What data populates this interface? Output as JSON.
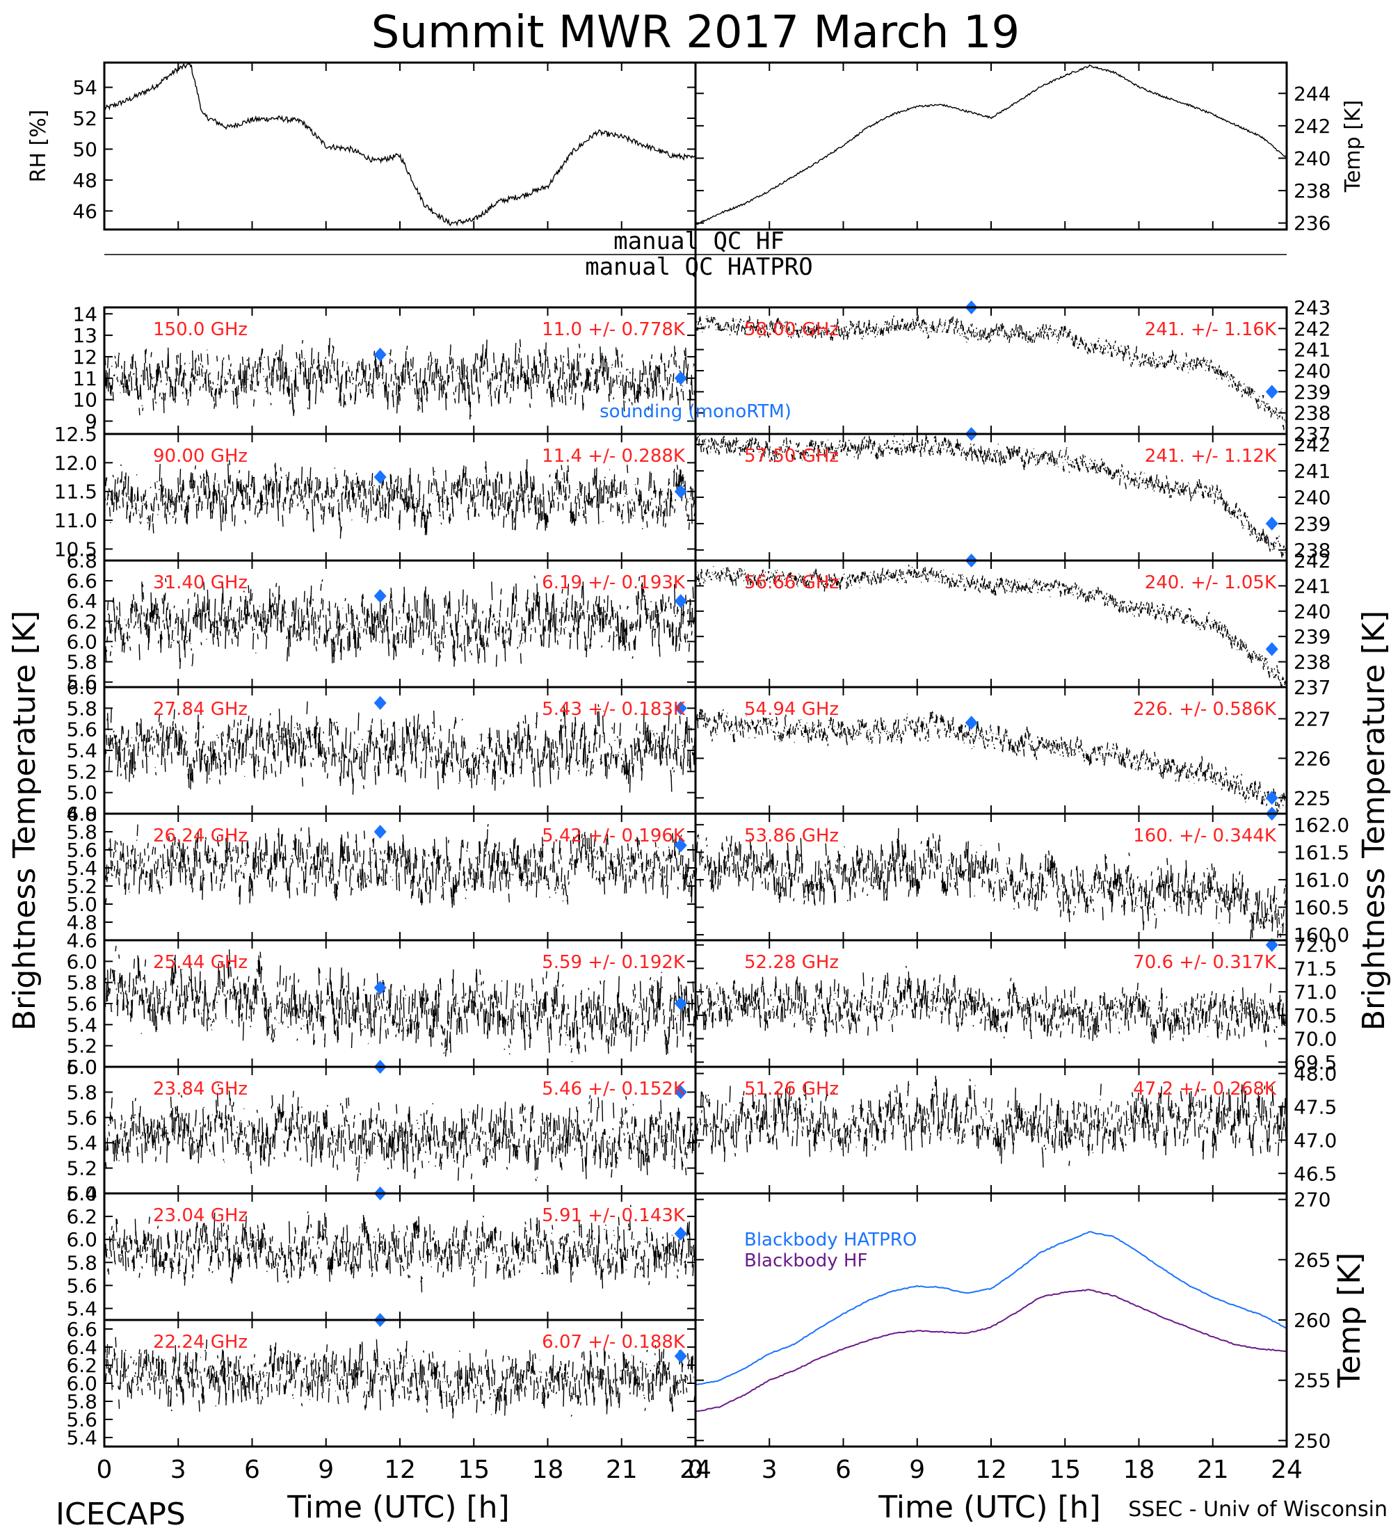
{
  "title": "Summit MWR 2017 March 19",
  "footer_left": "ICECAPS",
  "footer_right": "SSEC - Univ of Wisconsin",
  "xlabel": "Time (UTC) [h]",
  "x_ticks": [
    "0",
    "3",
    "6",
    "9",
    "12",
    "15",
    "18",
    "21",
    "24"
  ],
  "ylabel_brightness": "Brightness Temperature [K]",
  "qc_hf_label": "manual QC HF",
  "qc_hatpro_label": "manual QC HATPRO",
  "legend_sounding": "sounding (monoRTM)",
  "colors": {
    "data": "#000000",
    "label": "#ff2020",
    "sounding": "#1a73ff",
    "bb_hatpro": "#1a73ff",
    "bb_hf": "#6a1a8a"
  },
  "chart_data": [
    {
      "type": "line",
      "panel": "rh",
      "ylabel": "RH [%]",
      "ylim": [
        44.8,
        55.6
      ],
      "y_ticks": [
        "46",
        "48",
        "50",
        "52",
        "54"
      ],
      "series": [
        {
          "x": [
            0,
            1,
            2,
            3,
            3.5,
            4,
            5,
            6,
            7,
            8,
            9,
            10,
            11,
            12,
            13,
            14,
            15,
            16,
            17,
            18,
            19,
            20,
            21,
            22,
            23,
            24
          ],
          "values": [
            52.6,
            53.2,
            54.0,
            55.2,
            55.5,
            52.2,
            51.4,
            51.9,
            52.0,
            51.8,
            50.2,
            50.0,
            49.2,
            49.6,
            46.4,
            45.2,
            45.4,
            46.6,
            47.0,
            47.6,
            49.8,
            51.1,
            50.8,
            50.2,
            49.6,
            49.4
          ]
        }
      ]
    },
    {
      "type": "line",
      "panel": "temp",
      "ylabel": "Temp [K]",
      "ylim": [
        235.6,
        245.9
      ],
      "y_ticks": [
        "236",
        "238",
        "240",
        "242",
        "244"
      ],
      "series": [
        {
          "x": [
            0,
            1,
            2,
            3,
            4,
            5,
            6,
            7,
            8,
            9,
            10,
            11,
            12,
            13,
            14,
            15,
            16,
            17,
            18,
            19,
            20,
            21,
            22,
            23,
            24
          ],
          "values": [
            235.9,
            236.6,
            237.2,
            238.0,
            238.9,
            239.8,
            240.8,
            241.9,
            242.7,
            243.2,
            243.3,
            242.9,
            242.5,
            243.4,
            244.4,
            245.1,
            245.7,
            245.3,
            244.4,
            243.8,
            243.3,
            242.7,
            242.0,
            241.3,
            240.0
          ]
        }
      ]
    },
    {
      "type": "scatter",
      "panel": "150.0 GHz",
      "ylim": [
        8.4,
        14.3
      ],
      "y_ticks": [
        "9",
        "10",
        "11",
        "12",
        "13",
        "14"
      ],
      "label": "150.0 GHz",
      "stats": "11.0 +/- 0.778K",
      "mean_y": [
        11.0,
        11.0,
        11.0
      ],
      "noise": 0.778,
      "sounding": [
        {
          "x": 11.2,
          "y": 12.1
        },
        {
          "x": 23.4,
          "y": 11.0
        }
      ]
    },
    {
      "type": "scatter",
      "panel": "90.00 GHz",
      "ylim": [
        10.3,
        12.5
      ],
      "y_ticks": [
        "10.5",
        "11.0",
        "11.5",
        "12.0",
        "12.5"
      ],
      "label": "90.00 GHz",
      "stats": "11.4 +/- 0.288K",
      "mean_y": [
        11.4,
        11.4,
        11.4
      ],
      "noise": 0.288,
      "sounding": [
        {
          "x": 11.2,
          "y": 11.75
        },
        {
          "x": 23.4,
          "y": 11.5
        }
      ]
    },
    {
      "type": "scatter",
      "panel": "31.40 GHz",
      "ylim": [
        5.55,
        6.8
      ],
      "y_ticks": [
        "5.6",
        "5.8",
        "6.0",
        "6.2",
        "6.4",
        "6.6",
        "6.8"
      ],
      "label": "31.40 GHz",
      "stats": "6.19 +/- 0.193K",
      "mean_y": [
        6.2,
        6.15,
        6.2
      ],
      "noise": 0.193,
      "sounding": [
        {
          "x": 11.2,
          "y": 6.45
        },
        {
          "x": 23.4,
          "y": 6.4
        }
      ]
    },
    {
      "type": "scatter",
      "panel": "27.84 GHz",
      "ylim": [
        4.8,
        6.0
      ],
      "y_ticks": [
        "4.8",
        "5.0",
        "5.2",
        "5.4",
        "5.6",
        "5.8",
        "6.0"
      ],
      "label": "27.84 GHz",
      "stats": "5.43 +/- 0.183K",
      "mean_y": [
        5.45,
        5.4,
        5.45
      ],
      "noise": 0.183,
      "sounding": [
        {
          "x": 11.2,
          "y": 5.85
        },
        {
          "x": 23.4,
          "y": 5.8
        }
      ]
    },
    {
      "type": "scatter",
      "panel": "26.24 GHz",
      "ylim": [
        4.6,
        6.0
      ],
      "y_ticks": [
        "4.6",
        "4.8",
        "5.0",
        "5.2",
        "5.4",
        "5.6",
        "5.8",
        "6.0"
      ],
      "label": "26.24 GHz",
      "stats": "5.42 +/- 0.196K",
      "mean_y": [
        5.45,
        5.4,
        5.45
      ],
      "noise": 0.196,
      "sounding": [
        {
          "x": 11.2,
          "y": 5.8
        },
        {
          "x": 23.4,
          "y": 5.65
        }
      ]
    },
    {
      "type": "scatter",
      "panel": "25.44 GHz",
      "ylim": [
        5.0,
        6.2
      ],
      "y_ticks": [
        "5.0",
        "5.2",
        "5.4",
        "5.6",
        "5.8",
        "6.0"
      ],
      "label": "25.44 GHz",
      "stats": "5.59 +/- 0.192K",
      "mean_y": [
        5.75,
        5.5,
        5.55
      ],
      "noise": 0.192,
      "sounding": [
        {
          "x": 11.2,
          "y": 5.75
        },
        {
          "x": 23.4,
          "y": 5.6
        }
      ]
    },
    {
      "type": "scatter",
      "panel": "23.84 GHz",
      "ylim": [
        5.0,
        6.0
      ],
      "y_ticks": [
        "5.0",
        "5.2",
        "5.4",
        "5.6",
        "5.8",
        "6.0"
      ],
      "label": "23.84 GHz",
      "stats": "5.46 +/- 0.152K",
      "mean_y": [
        5.5,
        5.45,
        5.45
      ],
      "noise": 0.152,
      "sounding": [
        {
          "x": 11.2,
          "y": 6.0
        },
        {
          "x": 23.4,
          "y": 5.8
        }
      ]
    },
    {
      "type": "scatter",
      "panel": "23.04 GHz",
      "ylim": [
        5.3,
        6.4
      ],
      "y_ticks": [
        "5.4",
        "5.6",
        "5.8",
        "6.0",
        "6.2",
        "6.4"
      ],
      "label": "23.04 GHz",
      "stats": "5.91 +/- 0.143K",
      "mean_y": [
        5.95,
        5.9,
        5.9
      ],
      "noise": 0.143,
      "sounding": [
        {
          "x": 11.2,
          "y": 6.4
        },
        {
          "x": 23.4,
          "y": 6.05
        }
      ]
    },
    {
      "type": "scatter",
      "panel": "22.24 GHz",
      "ylim": [
        5.3,
        6.7
      ],
      "y_ticks": [
        "5.4",
        "5.6",
        "5.8",
        "6.0",
        "6.2",
        "6.4",
        "6.6"
      ],
      "label": "22.24 GHz",
      "stats": "6.07 +/- 0.188K",
      "mean_y": [
        6.1,
        6.05,
        6.05
      ],
      "noise": 0.188,
      "sounding": [
        {
          "x": 11.2,
          "y": 6.7
        },
        {
          "x": 23.4,
          "y": 6.3
        }
      ]
    },
    {
      "type": "scatter",
      "panel": "58.00 GHz",
      "ylim": [
        237,
        243
      ],
      "y_ticks": [
        "237",
        "238",
        "239",
        "240",
        "241",
        "242",
        "243"
      ],
      "label": "58.00 GHz",
      "stats": "241. +/- 1.16K",
      "mean_y": [
        242.2,
        242.0,
        241.9,
        242.2,
        241.8,
        241.7,
        240.6,
        240.2,
        237.5
      ],
      "noise": 0.25,
      "sounding": [
        {
          "x": 11.2,
          "y": 243.0
        },
        {
          "x": 23.4,
          "y": 239.0
        }
      ]
    },
    {
      "type": "scatter",
      "panel": "57.50 GHz",
      "ylim": [
        237.6,
        242.4
      ],
      "y_ticks": [
        "238",
        "239",
        "240",
        "241",
        "242"
      ],
      "label": "57.50 GHz",
      "stats": "241. +/- 1.12K",
      "mean_y": [
        242.0,
        241.8,
        241.8,
        242.0,
        241.6,
        241.5,
        240.6,
        240.1,
        237.8
      ],
      "noise": 0.22,
      "sounding": [
        {
          "x": 11.2,
          "y": 242.4
        },
        {
          "x": 23.4,
          "y": 239.0
        }
      ]
    },
    {
      "type": "scatter",
      "panel": "56.66 GHz",
      "ylim": [
        237,
        242
      ],
      "y_ticks": [
        "237",
        "238",
        "239",
        "240",
        "241",
        "242"
      ],
      "label": "56.66 GHz",
      "stats": "240. +/- 1.05K",
      "mean_y": [
        241.5,
        241.3,
        241.2,
        241.5,
        241.0,
        240.9,
        240.1,
        239.5,
        237.2
      ],
      "noise": 0.2,
      "sounding": [
        {
          "x": 11.2,
          "y": 242.0
        },
        {
          "x": 23.4,
          "y": 238.5
        }
      ]
    },
    {
      "type": "scatter",
      "panel": "54.94 GHz",
      "ylim": [
        224.6,
        227.8
      ],
      "y_ticks": [
        "225",
        "226",
        "227"
      ],
      "label": "54.94 GHz",
      "stats": "226. +/- 0.586K",
      "mean_y": [
        226.9,
        226.8,
        226.7,
        226.8,
        226.5,
        226.3,
        225.9,
        225.6,
        224.8
      ],
      "noise": 0.18,
      "sounding": [
        {
          "x": 11.2,
          "y": 226.9
        },
        {
          "x": 23.4,
          "y": 225.0
        }
      ]
    },
    {
      "type": "scatter",
      "panel": "53.86 GHz",
      "ylim": [
        159.9,
        162.2
      ],
      "y_ticks": [
        "160.0",
        "160.5",
        "161.0",
        "161.5",
        "162.0"
      ],
      "label": "53.86 GHz",
      "stats": "160. +/- 0.344K",
      "mean_y": [
        161.4,
        161.2,
        161.1,
        161.3,
        161.1,
        160.9,
        160.8,
        160.7,
        160.2
      ],
      "noise": 0.3,
      "sounding": [
        {
          "x": 23.4,
          "y": 162.2
        }
      ]
    },
    {
      "type": "scatter",
      "panel": "52.28 GHz",
      "ylim": [
        69.4,
        72.1
      ],
      "y_ticks": [
        "69.5",
        "70.0",
        "70.5",
        "71.0",
        "71.5",
        "72.0"
      ],
      "label": "52.28 GHz",
      "stats": "70.6 +/- 0.317K",
      "mean_y": [
        70.8,
        70.7,
        70.7,
        70.8,
        70.6,
        70.5,
        70.6,
        70.5,
        70.4
      ],
      "noise": 0.31,
      "sounding": [
        {
          "x": 23.4,
          "y": 72.0
        }
      ]
    },
    {
      "type": "scatter",
      "panel": "51.26 GHz",
      "ylim": [
        46.2,
        48.1
      ],
      "y_ticks": [
        "46.5",
        "47.0",
        "47.5",
        "48.0"
      ],
      "label": "51.26 GHz",
      "stats": "47.2 +/- 0.268K",
      "mean_y": [
        47.3,
        47.3,
        47.3,
        47.4,
        47.3,
        47.2,
        47.3,
        47.3,
        47.2
      ],
      "noise": 0.268,
      "sounding": []
    },
    {
      "type": "line",
      "panel": "blackbody",
      "ylabel": "Temp [K]",
      "ylim": [
        249.5,
        270.5
      ],
      "y_ticks": [
        "250",
        "255",
        "260",
        "265",
        "270"
      ],
      "series": [
        {
          "name": "Blackbody HATPRO",
          "x": [
            0,
            1,
            2,
            3,
            4,
            5,
            6,
            7,
            8,
            9,
            10,
            11,
            12,
            13,
            14,
            15,
            16,
            17,
            18,
            19,
            20,
            21,
            22,
            23,
            24
          ],
          "values": [
            254.6,
            255.0,
            256.0,
            257.2,
            258.0,
            259.3,
            260.5,
            261.6,
            262.4,
            262.8,
            262.7,
            262.2,
            262.6,
            264.0,
            265.6,
            266.5,
            267.3,
            266.9,
            265.6,
            264.2,
            262.9,
            261.9,
            261.1,
            260.4,
            259.3
          ]
        },
        {
          "name": "Blackbody HF",
          "x": [
            0,
            1,
            2,
            3,
            4,
            5,
            6,
            7,
            8,
            9,
            10,
            11,
            12,
            13,
            14,
            15,
            16,
            17,
            18,
            19,
            20,
            21,
            22,
            23,
            24
          ],
          "values": [
            252.4,
            252.8,
            253.8,
            255.0,
            255.8,
            256.8,
            257.6,
            258.3,
            258.9,
            259.1,
            259.0,
            258.9,
            259.4,
            260.6,
            261.9,
            262.3,
            262.5,
            262.0,
            261.1,
            260.2,
            259.4,
            258.6,
            257.9,
            257.6,
            257.4
          ]
        }
      ]
    }
  ]
}
